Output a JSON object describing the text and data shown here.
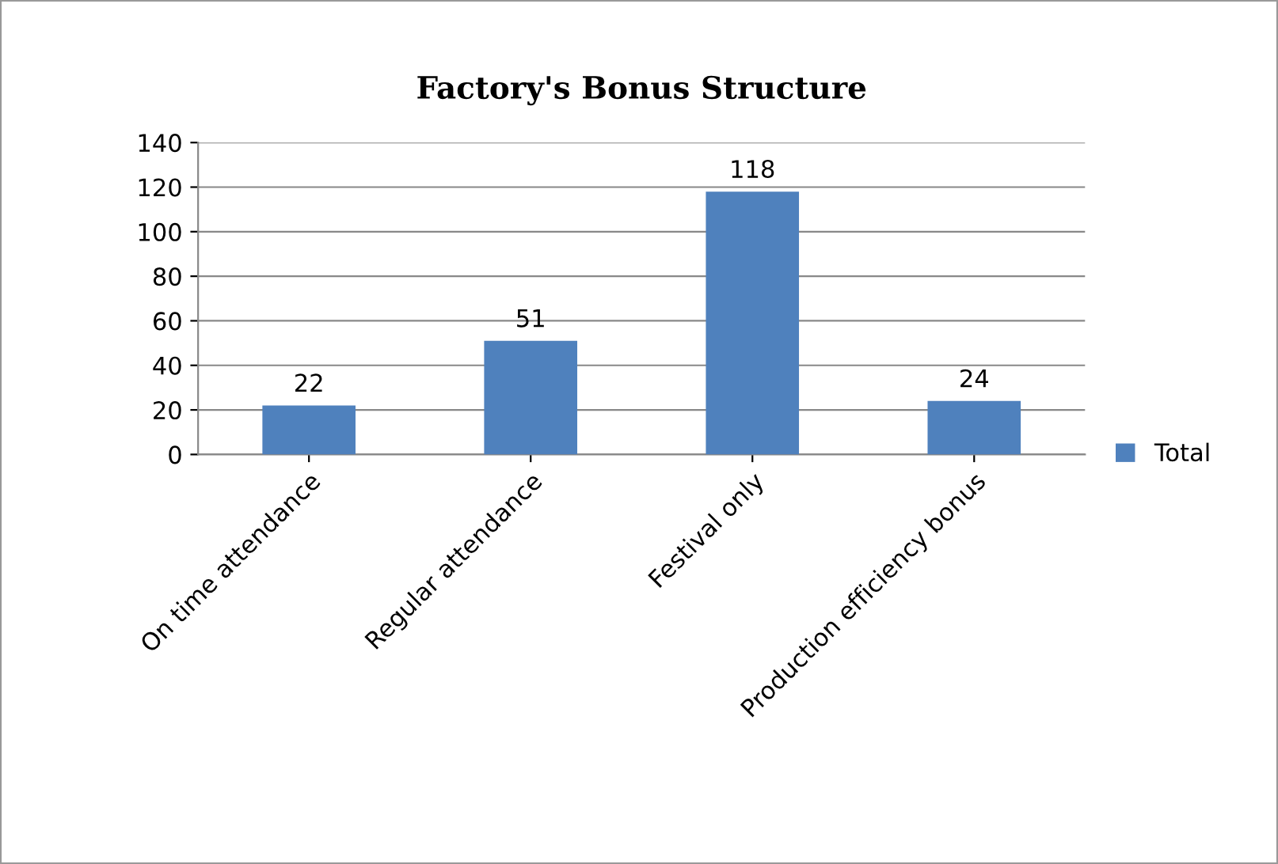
{
  "chart_data": {
    "type": "bar",
    "title": "Factory's Bonus Structure",
    "categories": [
      "On time attendance",
      "Regular attendance",
      "Festival only",
      "Production efficiency bonus"
    ],
    "series": [
      {
        "name": "Total",
        "color": "#4f81bd",
        "values": [
          22,
          51,
          118,
          24
        ]
      }
    ],
    "ylim": [
      0,
      140
    ],
    "yticks": [
      0,
      20,
      40,
      60,
      80,
      100,
      120,
      140
    ],
    "grid": "y",
    "legend": "right",
    "data_labels": true
  }
}
